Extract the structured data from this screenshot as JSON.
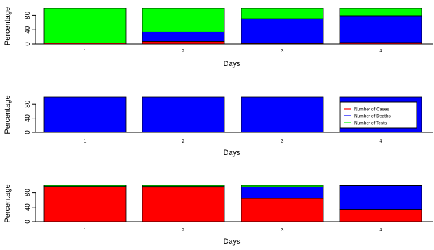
{
  "colors": {
    "cases": "#ff0000",
    "deaths": "#0000ff",
    "tests": "#00ff00"
  },
  "legend": {
    "items": [
      {
        "label": "Number of Cases",
        "color_key": "cases"
      },
      {
        "label": "Number of Deaths",
        "color_key": "deaths"
      },
      {
        "label": "Number of Tests",
        "color_key": "tests"
      }
    ]
  },
  "chart_data": [
    {
      "type": "bar",
      "stacked": true,
      "categories": [
        "1",
        "2",
        "3",
        "4"
      ],
      "xlabel": "Days",
      "ylabel": "Percentage",
      "ylim": [
        0,
        100
      ],
      "yticks": [
        "0",
        "40",
        "80"
      ],
      "series": [
        {
          "name": "Number of Cases",
          "color_key": "cases",
          "values": [
            3,
            7,
            2,
            4
          ]
        },
        {
          "name": "Number of Deaths",
          "color_key": "deaths",
          "values": [
            0,
            27,
            69,
            75
          ]
        },
        {
          "name": "Number of Tests",
          "color_key": "tests",
          "values": [
            97,
            66,
            29,
            21
          ]
        }
      ]
    },
    {
      "type": "bar",
      "stacked": true,
      "categories": [
        "1",
        "2",
        "3",
        "4"
      ],
      "xlabel": "Days",
      "ylabel": "Percentage",
      "ylim": [
        0,
        100
      ],
      "yticks": [
        "0",
        "40",
        "80"
      ],
      "legend_position": "inside-right",
      "series": [
        {
          "name": "Number of Cases",
          "color_key": "cases",
          "values": [
            0,
            0,
            0,
            0
          ]
        },
        {
          "name": "Number of Deaths",
          "color_key": "deaths",
          "values": [
            100,
            100,
            100,
            100
          ]
        },
        {
          "name": "Number of Tests",
          "color_key": "tests",
          "values": [
            0,
            0,
            0,
            0
          ]
        }
      ]
    },
    {
      "type": "bar",
      "stacked": true,
      "categories": [
        "1",
        "2",
        "3",
        "4"
      ],
      "xlabel": "Days",
      "ylabel": "Percentage",
      "ylim": [
        0,
        100
      ],
      "yticks": [
        "0",
        "40",
        "80"
      ],
      "series": [
        {
          "name": "Number of Cases",
          "color_key": "cases",
          "values": [
            97,
            95,
            64,
            33
          ]
        },
        {
          "name": "Number of Deaths",
          "color_key": "deaths",
          "values": [
            0,
            2,
            32,
            66
          ]
        },
        {
          "name": "Number of Tests",
          "color_key": "tests",
          "values": [
            3,
            3,
            4,
            1
          ]
        }
      ]
    }
  ]
}
